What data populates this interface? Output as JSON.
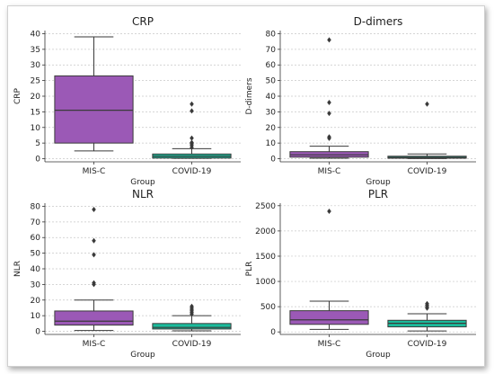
{
  "chart_data": [
    {
      "type": "box",
      "title": "CRP",
      "xlabel": "Group",
      "ylabel": "CRP",
      "categories": [
        "MIS-C",
        "COVID-19"
      ],
      "yticks": [
        0,
        5,
        10,
        15,
        20,
        25,
        30,
        35,
        40
      ],
      "ylim": [
        -1,
        41
      ],
      "grid": "horizontal",
      "series": [
        {
          "q1": 5,
          "median": 15.5,
          "q3": 26.5,
          "whisker_low": 2.5,
          "whisker_high": 39,
          "outliers": []
        },
        {
          "q1": 0.2,
          "median": 0.8,
          "q3": 1.5,
          "whisker_low": 0.1,
          "whisker_high": 3.2,
          "outliers": [
            17.5,
            15.3,
            6.6,
            5.2,
            4.8,
            4.3,
            3.6
          ]
        }
      ],
      "colors": [
        "#9b59b6",
        "#1abc9c"
      ]
    },
    {
      "type": "box",
      "title": "D-dimers",
      "xlabel": "Group",
      "ylabel": "D-dimers",
      "categories": [
        "MIS-C",
        "COVID-19"
      ],
      "yticks": [
        0,
        10,
        20,
        30,
        40,
        50,
        60,
        70,
        80
      ],
      "ylim": [
        -2,
        82
      ],
      "grid": "horizontal",
      "series": [
        {
          "q1": 1,
          "median": 2.5,
          "q3": 4.5,
          "whisker_low": 0.3,
          "whisker_high": 8,
          "outliers": [
            76,
            36,
            29,
            14,
            13
          ]
        },
        {
          "q1": 0.3,
          "median": 0.8,
          "q3": 1.6,
          "whisker_low": 0.1,
          "whisker_high": 3,
          "outliers": [
            35
          ]
        }
      ],
      "colors": [
        "#9b59b6",
        "#1abc9c"
      ]
    },
    {
      "type": "box",
      "title": "NLR",
      "xlabel": "Group",
      "ylabel": "NLR",
      "categories": [
        "MIS-C",
        "COVID-19"
      ],
      "yticks": [
        0,
        10,
        20,
        30,
        40,
        50,
        60,
        70,
        80
      ],
      "ylim": [
        -2,
        82
      ],
      "grid": "horizontal",
      "series": [
        {
          "q1": 4,
          "median": 6.5,
          "q3": 13,
          "whisker_low": 0.5,
          "whisker_high": 20,
          "outliers": [
            78,
            58,
            49,
            31,
            30
          ]
        },
        {
          "q1": 1.5,
          "median": 2.5,
          "q3": 5,
          "whisker_low": 0.3,
          "whisker_high": 10,
          "outliers": [
            16,
            15,
            14,
            13,
            12,
            11
          ]
        }
      ],
      "colors": [
        "#9b59b6",
        "#1abc9c"
      ]
    },
    {
      "type": "box",
      "title": "PLR",
      "xlabel": "Group",
      "ylabel": "PLR",
      "categories": [
        "MIS-C",
        "COVID-19"
      ],
      "yticks": [
        0,
        500,
        1000,
        1500,
        2000,
        2500
      ],
      "ylim": [
        -50,
        2550
      ],
      "grid": "horizontal",
      "series": [
        {
          "q1": 150,
          "median": 240,
          "q3": 420,
          "whisker_low": 50,
          "whisker_high": 610,
          "outliers": [
            2390
          ]
        },
        {
          "q1": 100,
          "median": 170,
          "q3": 230,
          "whisker_low": 20,
          "whisker_high": 360,
          "outliers": [
            560,
            530,
            500,
            470
          ]
        }
      ],
      "colors": [
        "#9b59b6",
        "#1abc9c"
      ]
    }
  ]
}
